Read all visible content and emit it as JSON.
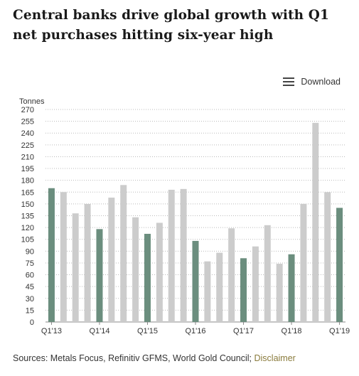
{
  "header": {
    "title": "Central banks drive global growth with Q1 net purchases hitting six-year high"
  },
  "toolbar": {
    "download_label": "Download",
    "download_icon": "menu-icon"
  },
  "footer": {
    "sources_text": "Sources: Metals Focus, Refinitiv GFMS, World Gold Council;",
    "disclaimer_label": "Disclaimer"
  },
  "colors": {
    "q1_bar": "#6b8e7e",
    "other_bar": "#cccccc",
    "disclaimer_link": "#8a7b3c"
  },
  "chart_data": {
    "type": "bar",
    "title": "Central banks drive global growth with Q1 net purchases hitting six-year high",
    "ylabel": "Tonnes",
    "xlabel": "",
    "ylim": [
      0,
      270
    ],
    "yticks": [
      0,
      15,
      30,
      45,
      60,
      75,
      90,
      105,
      120,
      135,
      150,
      165,
      180,
      195,
      210,
      225,
      240,
      255,
      270
    ],
    "grid": true,
    "categories": [
      "Q1'13",
      "Q2'13",
      "Q3'13",
      "Q4'13",
      "Q1'14",
      "Q2'14",
      "Q3'14",
      "Q4'14",
      "Q1'15",
      "Q2'15",
      "Q3'15",
      "Q4'15",
      "Q1'16",
      "Q2'16",
      "Q3'16",
      "Q4'16",
      "Q1'17",
      "Q2'17",
      "Q3'17",
      "Q4'17",
      "Q1'18",
      "Q2'18",
      "Q3'18",
      "Q4'18",
      "Q1'19"
    ],
    "values": [
      170,
      165,
      138,
      150,
      118,
      158,
      174,
      133,
      112,
      126,
      168,
      169,
      103,
      77,
      88,
      119,
      81,
      96,
      123,
      74,
      86,
      150,
      253,
      165,
      145
    ],
    "highlight": [
      true,
      false,
      false,
      false,
      true,
      false,
      false,
      false,
      true,
      false,
      false,
      false,
      true,
      false,
      false,
      false,
      true,
      false,
      false,
      false,
      true,
      false,
      false,
      false,
      true
    ],
    "x_tick_labels": [
      "Q1'13",
      "Q1'14",
      "Q1'15",
      "Q1'16",
      "Q1'17",
      "Q1'18",
      "Q1'19"
    ]
  }
}
